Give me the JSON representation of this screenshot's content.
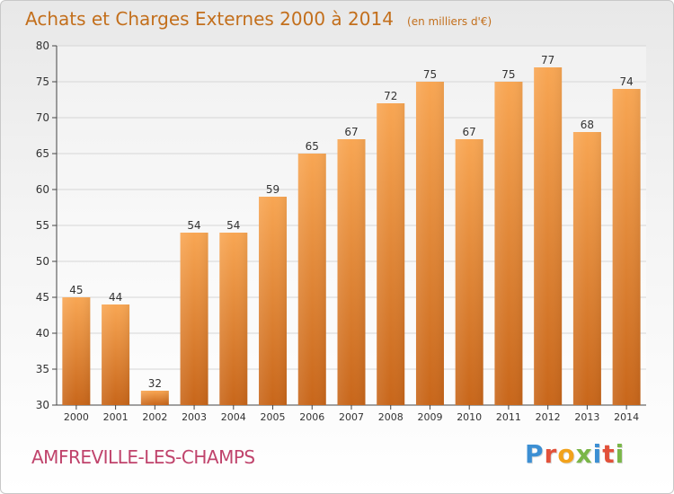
{
  "header": {
    "title": "Achats et Charges Externes 2000 à 2014",
    "subtitle": "(en milliers d'€)"
  },
  "footer": {
    "commune": "AMFREVILLE-LES-CHAMPS",
    "brand": "Proxiti",
    "brand_colors": [
      "#3c8fd3",
      "#e2513a",
      "#f2a21b",
      "#7ab648",
      "#3c8fd3",
      "#e2513a",
      "#7ab648"
    ]
  },
  "colors": {
    "title": "#c36f1c",
    "commune": "#c0446c",
    "bar_top": "#f8a653",
    "bar_bottom": "#c8661a",
    "grid": "#d6d6d6"
  },
  "chart_data": {
    "type": "bar",
    "title": "Achats et Charges Externes 2000 à 2014",
    "subtitle": "(en milliers d'€)",
    "categories": [
      "2000",
      "2001",
      "2002",
      "2003",
      "2004",
      "2005",
      "2006",
      "2007",
      "2008",
      "2009",
      "2010",
      "2011",
      "2012",
      "2013",
      "2014"
    ],
    "values": [
      45,
      44,
      32,
      54,
      54,
      59,
      65,
      67,
      72,
      75,
      67,
      75,
      77,
      68,
      74
    ],
    "ylim": [
      30,
      80
    ],
    "yticks": [
      30,
      35,
      40,
      45,
      50,
      55,
      60,
      65,
      70,
      75,
      80
    ],
    "grid": true,
    "legend": "none"
  }
}
